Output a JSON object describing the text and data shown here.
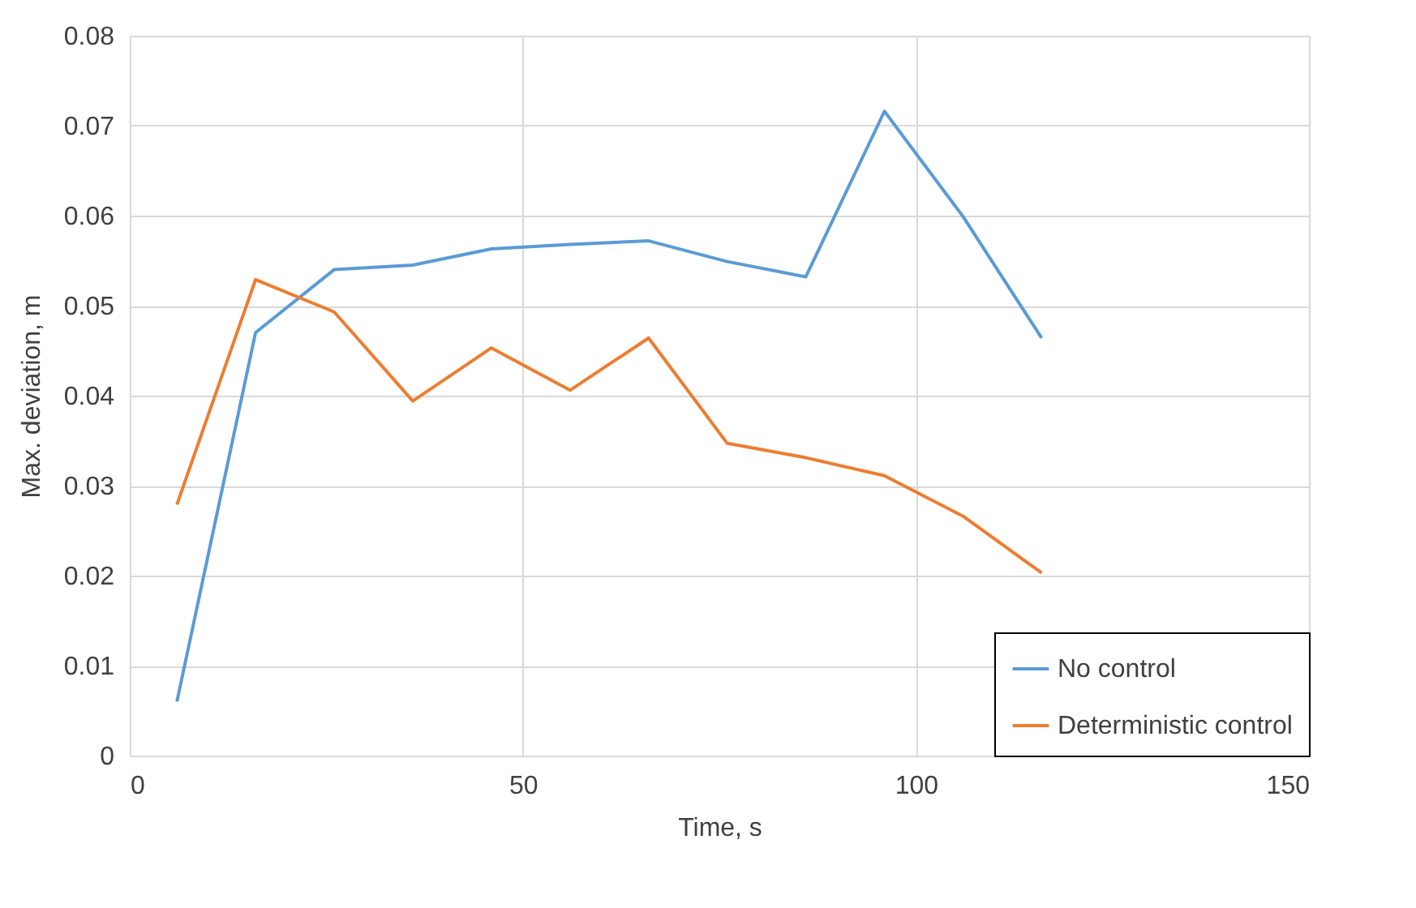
{
  "chart_data": {
    "type": "line",
    "xlabel": "Time, s",
    "ylabel": "Max. deviation, m",
    "x": [
      6,
      16,
      26,
      36,
      46,
      56,
      66,
      76,
      86,
      96,
      106,
      116
    ],
    "series": [
      {
        "name": "No control",
        "color": "#5b9bd5",
        "values": [
          0.006,
          0.047,
          0.054,
          0.0545,
          0.0563,
          0.0568,
          0.0572,
          0.0549,
          0.0532,
          0.0716,
          0.0599,
          0.0464
        ]
      },
      {
        "name": "Deterministic control",
        "color": "#ed7d31",
        "values": [
          0.0279,
          0.0529,
          0.0493,
          0.0394,
          0.0453,
          0.0406,
          0.0464,
          0.0347,
          0.0331,
          0.0311,
          0.0266,
          0.0203
        ]
      }
    ],
    "xlim": [
      0,
      150
    ],
    "xticks": [
      0,
      50,
      100,
      150
    ],
    "ylim": [
      0,
      0.08
    ],
    "yticks": [
      0,
      0.01,
      0.02,
      0.03,
      0.04,
      0.05,
      0.06,
      0.07,
      0.08
    ],
    "grid": true,
    "legend": "bottom right",
    "marker": "none",
    "line_style": "solid"
  }
}
